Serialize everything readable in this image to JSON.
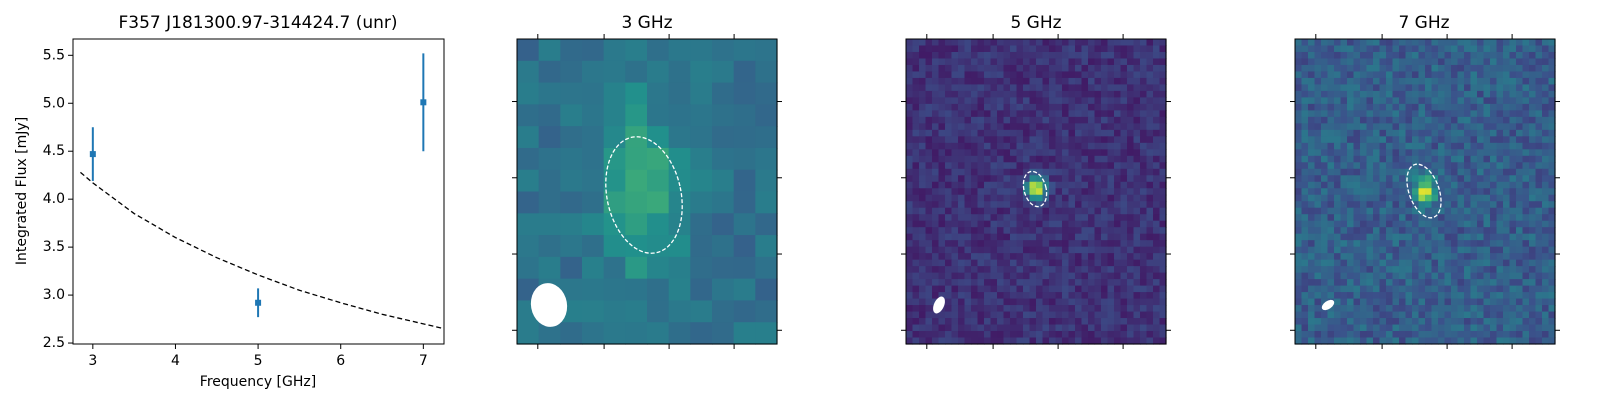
{
  "chart_data": [
    {
      "type": "errorbar",
      "title": "F357 J181300.97-314424.7 (unr)",
      "xlabel": "Frequency [GHz]",
      "ylabel": "Integrated Flux [mJy]",
      "xlim": [
        2.76,
        7.25
      ],
      "ylim": [
        2.49,
        5.67
      ],
      "xticks": [
        3,
        4,
        5,
        6,
        7
      ],
      "yticks": [
        2.5,
        {
          "value": 3,
          "label": "3.0"
        },
        3.5,
        {
          "value": 4,
          "label": "4.0"
        },
        4.5,
        {
          "value": 5,
          "label": "5.0"
        },
        5.5
      ],
      "series": [
        {
          "color": "#1f77b4",
          "x": [
            3,
            5,
            7
          ],
          "values": [
            4.47,
            2.92,
            5.01
          ],
          "errors": [
            0.28,
            0.15,
            0.51
          ]
        },
        {
          "color": "#000000",
          "style": "dashed",
          "x": [
            2.85,
            3,
            3.5,
            4,
            4.5,
            5,
            5.5,
            6,
            6.5,
            7,
            7.25
          ],
          "values": [
            4.28,
            4.17,
            3.85,
            3.6,
            3.39,
            3.21,
            3.05,
            2.92,
            2.8,
            2.7,
            2.65
          ]
        }
      ]
    },
    {
      "type": "image",
      "title": "3 GHz"
    },
    {
      "type": "image",
      "title": "5 GHz"
    },
    {
      "type": "image",
      "title": "7 GHz"
    }
  ]
}
